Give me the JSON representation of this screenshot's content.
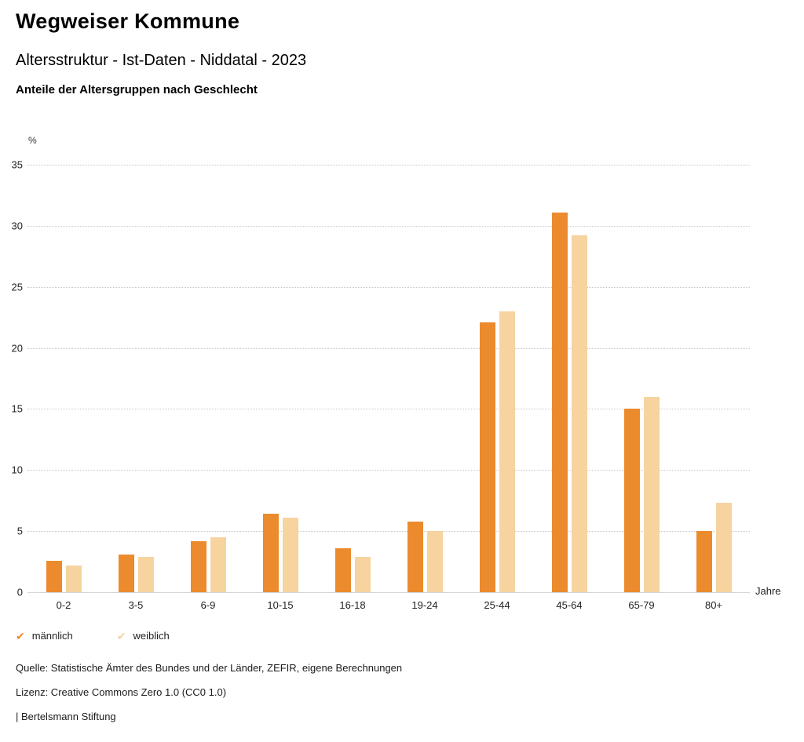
{
  "header": {
    "title": "Wegweiser Kommune",
    "subtitle": "Altersstruktur - Ist-Daten - Niddatal - 2023",
    "chart_heading": "Anteile der Altersgruppen nach Geschlecht"
  },
  "chart_data": {
    "type": "bar",
    "title": "Anteile der Altersgruppen nach Geschlecht",
    "categories": [
      "0-2",
      "3-5",
      "6-9",
      "10-15",
      "16-18",
      "19-24",
      "25-44",
      "45-64",
      "65-79",
      "80+"
    ],
    "series": [
      {
        "name": "männlich",
        "color": "#EB8B2D",
        "values": [
          2.6,
          3.1,
          4.2,
          6.4,
          3.6,
          5.8,
          22.1,
          31.1,
          15.0,
          5.0
        ]
      },
      {
        "name": "weiblich",
        "color": "#F7D3A0",
        "values": [
          2.2,
          2.9,
          4.5,
          6.1,
          2.9,
          5.0,
          23.0,
          29.2,
          16.0,
          7.3
        ]
      }
    ],
    "ylabel": "%",
    "xlabel": "Jahre",
    "ylim": [
      0,
      35
    ],
    "ytick_step": 5,
    "grid": "dotted-horizontal",
    "legend_position": "bottom-left"
  },
  "footer": {
    "source": "Quelle: Statistische Ämter des Bundes und der Länder, ZEFIR, eigene Berechnungen",
    "license": "Lizenz: Creative Commons Zero 1.0 (CC0 1.0)",
    "attribution": "| Bertelsmann Stiftung"
  }
}
